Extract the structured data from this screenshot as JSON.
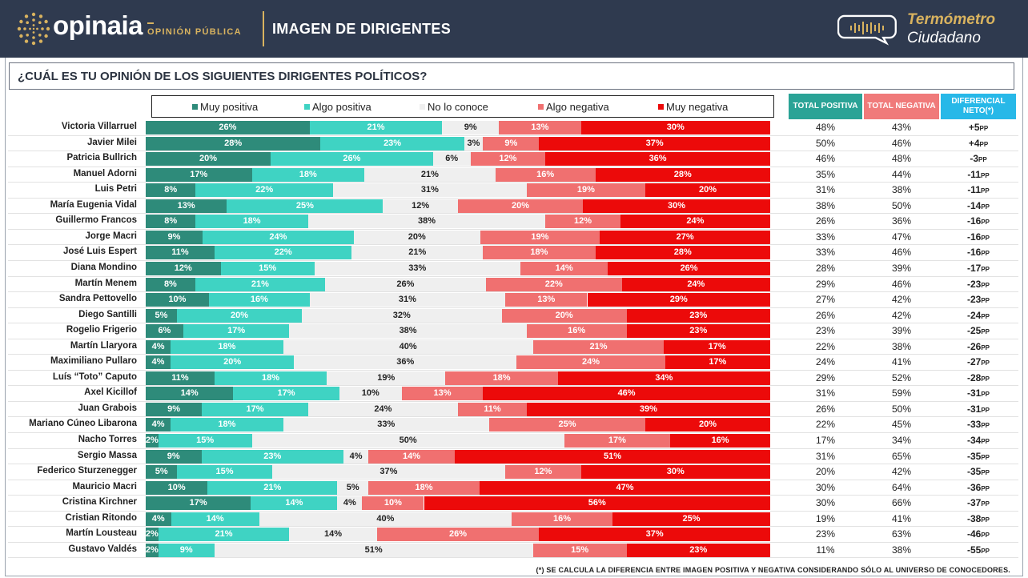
{
  "header": {
    "brand": "opinaia",
    "brand_sub": "OPINIÓN PÚBLICA",
    "title": "IMAGEN DE DIRIGENTES",
    "thermo_line1": "Termómetro",
    "thermo_line2": "Ciudadano"
  },
  "question": "¿CUÁL ES TU OPINIÓN DE LOS SIGUIENTES DIRIGENTES POLÍTICOS?",
  "col_headers": {
    "pos": "TOTAL POSITIVA",
    "neg": "TOTAL NEGATIVA",
    "net": "DIFERENCIAL NETO(*)"
  },
  "footnote": "(*) SE CALCULA LA DIFERENCIA ENTRE IMAGEN POSITIVA Y NEGATIVA CONSIDERANDO SÓLO AL UNIVERSO DE CONOCEDORES.",
  "colors": {
    "muy_positiva": "#2e8b7a",
    "algo_positiva": "#3fd3c3",
    "no_lo_conoce": "#efefef",
    "algo_negativa": "#f07070",
    "muy_negativa": "#ec0a0a",
    "header_bg": "#2f3a4f",
    "gold": "#d9b35f",
    "hdr_pos": "#2aa396",
    "hdr_neg": "#f07a7a",
    "hdr_net": "#27b8e8"
  },
  "chart_data": {
    "type": "bar",
    "stacked": true,
    "orientation": "horizontal",
    "title": "¿CUÁL ES TU OPINIÓN DE LOS SIGUIENTES DIRIGENTES POLÍTICOS?",
    "legend_position": "top",
    "unit_suffix": "PP",
    "series": [
      {
        "name": "Muy positiva",
        "key": "muy_positiva"
      },
      {
        "name": "Algo positiva",
        "key": "algo_positiva"
      },
      {
        "name": "No lo conoce",
        "key": "no_lo_conoce"
      },
      {
        "name": "Algo negativa",
        "key": "algo_negativa"
      },
      {
        "name": "Muy negativa",
        "key": "muy_negativa"
      }
    ],
    "rows": [
      {
        "name": "Victoria Villarruel",
        "values": [
          26,
          21,
          9,
          13,
          30
        ],
        "total_pos": "48%",
        "total_neg": "43%",
        "net": "+5"
      },
      {
        "name": "Javier Milei",
        "values": [
          28,
          23,
          3,
          9,
          37
        ],
        "total_pos": "50%",
        "total_neg": "46%",
        "net": "+4"
      },
      {
        "name": "Patricia Bullrich",
        "values": [
          20,
          26,
          6,
          12,
          36
        ],
        "total_pos": "46%",
        "total_neg": "48%",
        "net": "-3"
      },
      {
        "name": "Manuel Adorni",
        "values": [
          17,
          18,
          21,
          16,
          28
        ],
        "total_pos": "35%",
        "total_neg": "44%",
        "net": "-11"
      },
      {
        "name": "Luis Petri",
        "values": [
          8,
          22,
          31,
          19,
          20
        ],
        "total_pos": "31%",
        "total_neg": "38%",
        "net": "-11"
      },
      {
        "name": "María Eugenia Vidal",
        "values": [
          13,
          25,
          12,
          20,
          30
        ],
        "total_pos": "38%",
        "total_neg": "50%",
        "net": "-14"
      },
      {
        "name": "Guillermo Francos",
        "values": [
          8,
          18,
          38,
          12,
          24
        ],
        "total_pos": "26%",
        "total_neg": "36%",
        "net": "-16"
      },
      {
        "name": "Jorge Macri",
        "values": [
          9,
          24,
          20,
          19,
          27
        ],
        "total_pos": "33%",
        "total_neg": "47%",
        "net": "-16"
      },
      {
        "name": "José Luis Espert",
        "values": [
          11,
          22,
          21,
          18,
          28
        ],
        "total_pos": "33%",
        "total_neg": "46%",
        "net": "-16"
      },
      {
        "name": "Diana Mondino",
        "values": [
          12,
          15,
          33,
          14,
          26
        ],
        "total_pos": "28%",
        "total_neg": "39%",
        "net": "-17"
      },
      {
        "name": "Martín Menem",
        "values": [
          8,
          21,
          26,
          22,
          24
        ],
        "total_pos": "29%",
        "total_neg": "46%",
        "net": "-23"
      },
      {
        "name": "Sandra Pettovello",
        "values": [
          10,
          16,
          31,
          13,
          29
        ],
        "total_pos": "27%",
        "total_neg": "42%",
        "net": "-23"
      },
      {
        "name": "Diego Santilli",
        "values": [
          5,
          20,
          32,
          20,
          23
        ],
        "total_pos": "26%",
        "total_neg": "42%",
        "net": "-24"
      },
      {
        "name": "Rogelio Frigerio",
        "values": [
          6,
          17,
          38,
          16,
          23
        ],
        "total_pos": "23%",
        "total_neg": "39%",
        "net": "-25"
      },
      {
        "name": "Martín Llaryora",
        "values": [
          4,
          18,
          40,
          21,
          17
        ],
        "total_pos": "22%",
        "total_neg": "38%",
        "net": "-26"
      },
      {
        "name": "Maximiliano Pullaro",
        "values": [
          4,
          20,
          36,
          24,
          17
        ],
        "total_pos": "24%",
        "total_neg": "41%",
        "net": "-27"
      },
      {
        "name": "Luís “Toto” Caputo",
        "values": [
          11,
          18,
          19,
          18,
          34
        ],
        "total_pos": "29%",
        "total_neg": "52%",
        "net": "-28"
      },
      {
        "name": "Axel Kicillof",
        "values": [
          14,
          17,
          10,
          13,
          46
        ],
        "total_pos": "31%",
        "total_neg": "59%",
        "net": "-31"
      },
      {
        "name": "Juan Grabois",
        "values": [
          9,
          17,
          24,
          11,
          39
        ],
        "total_pos": "26%",
        "total_neg": "50%",
        "net": "-31"
      },
      {
        "name": "Mariano Cúneo Libarona",
        "values": [
          4,
          18,
          33,
          25,
          20
        ],
        "total_pos": "22%",
        "total_neg": "45%",
        "net": "-33"
      },
      {
        "name": "Nacho Torres",
        "values": [
          2,
          15,
          50,
          17,
          16
        ],
        "total_pos": "17%",
        "total_neg": "34%",
        "net": "-34"
      },
      {
        "name": "Sergio Massa",
        "values": [
          9,
          23,
          4,
          14,
          51
        ],
        "total_pos": "31%",
        "total_neg": "65%",
        "net": "-35"
      },
      {
        "name": "Federico Sturzenegger",
        "values": [
          5,
          15,
          37,
          12,
          30
        ],
        "total_pos": "20%",
        "total_neg": "42%",
        "net": "-35"
      },
      {
        "name": "Mauricio Macri",
        "values": [
          10,
          21,
          5,
          18,
          47
        ],
        "total_pos": "30%",
        "total_neg": "64%",
        "net": "-36"
      },
      {
        "name": "Cristina Kirchner",
        "values": [
          17,
          14,
          4,
          10,
          56
        ],
        "total_pos": "30%",
        "total_neg": "66%",
        "net": "-37"
      },
      {
        "name": "Cristian Ritondo",
        "values": [
          4,
          14,
          40,
          16,
          25
        ],
        "total_pos": "19%",
        "total_neg": "41%",
        "net": "-38"
      },
      {
        "name": "Martín Lousteau",
        "values": [
          2,
          21,
          14,
          26,
          37
        ],
        "total_pos": "23%",
        "total_neg": "63%",
        "net": "-46"
      },
      {
        "name": "Gustavo Valdés",
        "values": [
          2,
          9,
          51,
          15,
          23
        ],
        "total_pos": "11%",
        "total_neg": "38%",
        "net": "-55"
      }
    ]
  }
}
